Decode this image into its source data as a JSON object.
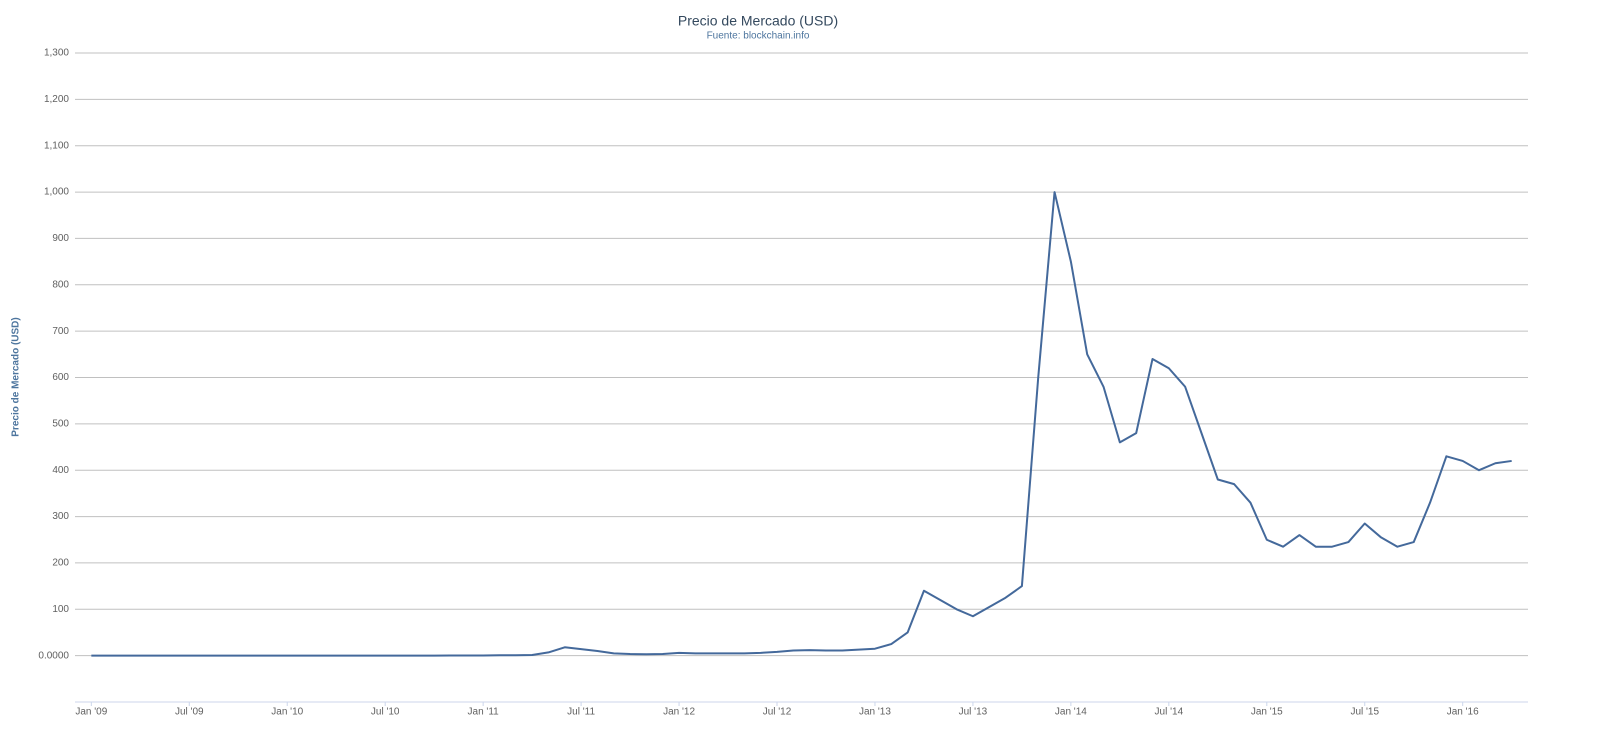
{
  "chart_data": {
    "type": "line",
    "title": "Precio de Mercado (USD)",
    "subtitle": "Fuente: blockchain.info",
    "y_label": "Precio de Mercado (USD)",
    "color": "#44699b",
    "grid": true,
    "x": [
      "2009-01",
      "2009-02",
      "2009-03",
      "2009-04",
      "2009-05",
      "2009-06",
      "2009-07",
      "2009-08",
      "2009-09",
      "2009-10",
      "2009-11",
      "2009-12",
      "2010-01",
      "2010-02",
      "2010-03",
      "2010-04",
      "2010-05",
      "2010-06",
      "2010-07",
      "2010-08",
      "2010-09",
      "2010-10",
      "2010-11",
      "2010-12",
      "2011-01",
      "2011-02",
      "2011-03",
      "2011-04",
      "2011-05",
      "2011-06",
      "2011-07",
      "2011-08",
      "2011-09",
      "2011-10",
      "2011-11",
      "2011-12",
      "2012-01",
      "2012-02",
      "2012-03",
      "2012-04",
      "2012-05",
      "2012-06",
      "2012-07",
      "2012-08",
      "2012-09",
      "2012-10",
      "2012-11",
      "2012-12",
      "2013-01",
      "2013-02",
      "2013-03",
      "2013-04",
      "2013-05",
      "2013-06",
      "2013-07",
      "2013-08",
      "2013-09",
      "2013-10",
      "2013-11",
      "2013-12",
      "2014-01",
      "2014-02",
      "2014-03",
      "2014-04",
      "2014-05",
      "2014-06",
      "2014-07",
      "2014-08",
      "2014-09",
      "2014-10",
      "2014-11",
      "2014-12",
      "2015-01",
      "2015-02",
      "2015-03",
      "2015-04",
      "2015-05",
      "2015-06",
      "2015-07",
      "2015-08",
      "2015-09",
      "2015-10",
      "2015-11",
      "2015-12",
      "2016-01",
      "2016-02",
      "2016-03",
      "2016-04"
    ],
    "values": [
      0,
      0,
      0,
      0,
      0,
      0,
      0,
      0,
      0,
      0,
      0,
      0,
      0,
      0,
      0,
      0,
      0,
      0,
      0.06,
      0.07,
      0.06,
      0.1,
      0.25,
      0.23,
      0.3,
      0.9,
      0.9,
      1.5,
      7,
      18,
      14,
      10,
      5,
      3.5,
      3,
      3.5,
      6,
      5,
      5,
      5,
      5,
      6,
      8,
      11,
      12,
      11,
      11,
      13,
      15,
      25,
      50,
      140,
      120,
      100,
      85,
      105,
      125,
      150,
      600,
      1000,
      850,
      650,
      580,
      460,
      480,
      640,
      620,
      580,
      480,
      380,
      370,
      330,
      250,
      235,
      260,
      235,
      235,
      245,
      285,
      255,
      235,
      245,
      330,
      430,
      420,
      400,
      415,
      420
    ],
    "xlim": [
      "2008-12",
      "2016-05"
    ],
    "xticks": [
      {
        "value": "2009-01",
        "label": "Jan '09"
      },
      {
        "value": "2009-07",
        "label": "Jul '09"
      },
      {
        "value": "2010-01",
        "label": "Jan '10"
      },
      {
        "value": "2010-07",
        "label": "Jul '10"
      },
      {
        "value": "2011-01",
        "label": "Jan '11"
      },
      {
        "value": "2011-07",
        "label": "Jul '11"
      },
      {
        "value": "2012-01",
        "label": "Jan '12"
      },
      {
        "value": "2012-07",
        "label": "Jul '12"
      },
      {
        "value": "2013-01",
        "label": "Jan '13"
      },
      {
        "value": "2013-07",
        "label": "Jul '13"
      },
      {
        "value": "2014-01",
        "label": "Jan '14"
      },
      {
        "value": "2014-07",
        "label": "Jul '14"
      },
      {
        "value": "2015-01",
        "label": "Jan '15"
      },
      {
        "value": "2015-07",
        "label": "Jul '15"
      },
      {
        "value": "2016-01",
        "label": "Jan '16"
      }
    ],
    "ylim": [
      -100,
      1300
    ],
    "yticks": [
      {
        "value": 0,
        "label": "0.0000"
      },
      100,
      200,
      300,
      400,
      500,
      600,
      700,
      800,
      900,
      {
        "value": 1000,
        "label": "1,000"
      },
      {
        "value": 1100,
        "label": "1,100"
      },
      {
        "value": 1200,
        "label": "1,200"
      },
      {
        "value": 1300,
        "label": "1,300"
      }
    ]
  }
}
